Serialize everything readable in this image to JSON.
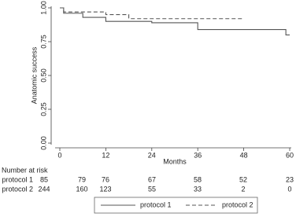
{
  "chart_data": {
    "type": "step",
    "ylabel": "Anatomic success",
    "xlabel": "Months",
    "xlim": [
      0,
      60
    ],
    "xticks": [
      0,
      12,
      24,
      36,
      48,
      60
    ],
    "ylim": [
      0,
      1
    ],
    "yticks": [
      {
        "value": 0,
        "label": "0.00"
      },
      {
        "value": 0.25,
        "label": "0.25"
      },
      {
        "value": 0.5,
        "label": "0.50"
      },
      {
        "value": 0.75,
        "label": "0.75"
      },
      {
        "value": 1,
        "label": "1.00"
      }
    ],
    "series": [
      {
        "name": "protocol 1",
        "color": "#555555",
        "dash": false,
        "x": [
          0,
          1,
          1,
          6,
          6,
          12,
          12,
          24,
          24,
          36,
          36,
          59,
          59,
          60
        ],
        "values": [
          1,
          1,
          0.96,
          0.96,
          0.93,
          0.93,
          0.9,
          0.9,
          0.89,
          0.89,
          0.84,
          0.84,
          0.8,
          0.8
        ]
      },
      {
        "name": "protocol 2",
        "color": "#555555",
        "dash": true,
        "x": [
          0,
          1,
          1,
          12,
          12,
          18,
          18,
          48
        ],
        "values": [
          1,
          1,
          0.97,
          0.97,
          0.95,
          0.95,
          0.92,
          0.92
        ]
      }
    ],
    "risk_table": {
      "title": "Number at risk",
      "rows": [
        {
          "name": "protocol 1",
          "values": [
            85,
            79,
            76,
            67,
            58,
            52,
            23
          ]
        },
        {
          "name": "protocol 2",
          "values": [
            244,
            160,
            123,
            55,
            33,
            2,
            0
          ]
        }
      ]
    }
  }
}
